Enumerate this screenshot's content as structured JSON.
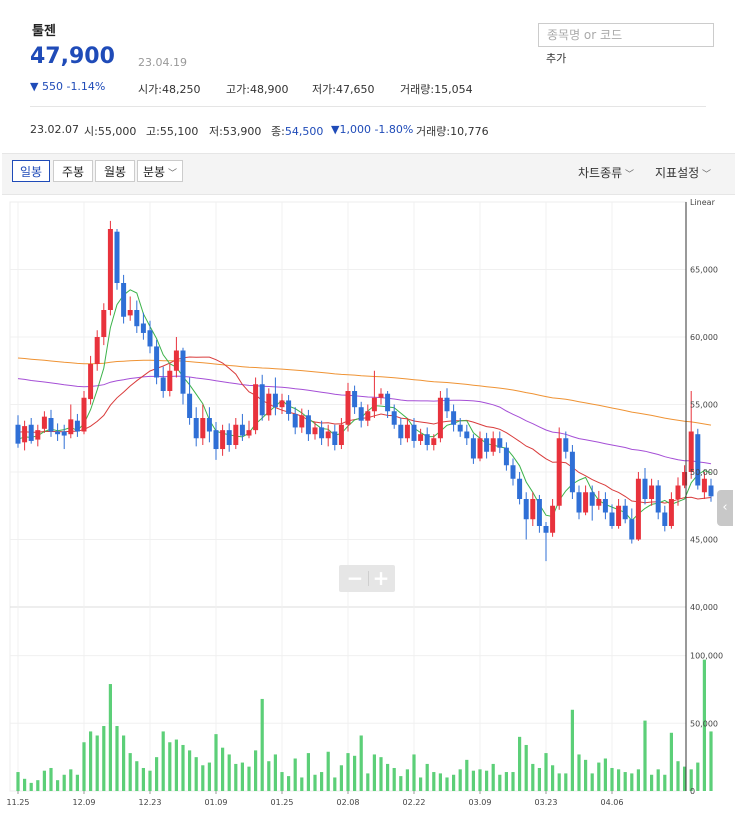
{
  "stock": {
    "name": "툴젠",
    "price": "47,900",
    "date": "23.04.19",
    "change_arrow": "▼",
    "change": "550",
    "change_pct": "-1.14%",
    "stats": [
      {
        "label": "시가",
        "value": "48,250"
      },
      {
        "label": "고가",
        "value": "48,900"
      },
      {
        "label": "저가",
        "value": "47,650"
      },
      {
        "label": "거래량",
        "value": "15,054"
      }
    ]
  },
  "search": {
    "placeholder": "종목명 or 코드",
    "add_label": "추가"
  },
  "prev_day": {
    "date": "23.02.07",
    "open_label": "시",
    "open": "55,000",
    "high_label": "고",
    "high": "55,100",
    "low_label": "저",
    "low": "53,900",
    "close_label": "종",
    "close": "54,500",
    "change": "▼1,000",
    "change_pct": "-1.80%",
    "volume_label": "거래량",
    "volume": "10,776"
  },
  "toolbar": {
    "tabs": [
      "일봉",
      "주봉",
      "월봉",
      "분봉"
    ],
    "selected_tab": "일봉",
    "chart_type_label": "차트종류",
    "indicator_label": "지표설정"
  },
  "colors": {
    "up": "#e8323c",
    "down": "#2f6fd6",
    "ma5": "#3cb34a",
    "ma20": "#d93b3b",
    "ma60": "#a54fd6",
    "ma120": "#ef9334",
    "volume": "#5ccf78",
    "accent": "#1f4bb8"
  },
  "chart_data": {
    "type": "candlestick",
    "scale_label": "Linear",
    "price_ylim": [
      40000,
      70000
    ],
    "price_ticks": [
      "65,000",
      "60,000",
      "55,000",
      "50,000",
      "45,000",
      "40,000"
    ],
    "price_tick_values": [
      65000,
      60000,
      55000,
      50000,
      45000,
      40000
    ],
    "volume_ylim": [
      0,
      130000
    ],
    "volume_ticks": [
      "100,000",
      "50,000",
      "0"
    ],
    "volume_tick_values": [
      100000,
      50000,
      0
    ],
    "x_tick_labels": [
      "11.25",
      "12.09",
      "12.23",
      "01.09",
      "01.25",
      "02.08",
      "02.22",
      "03.09",
      "03.23",
      "04.06"
    ],
    "x_tick_index": [
      0,
      10,
      20,
      30,
      40,
      50,
      60,
      70,
      80,
      90
    ],
    "grid": true,
    "candles": [
      [
        53500,
        52100,
        54200,
        51800
      ],
      [
        52200,
        53400,
        53800,
        51600
      ],
      [
        53500,
        52300,
        54000,
        52100
      ],
      [
        52400,
        53100,
        53500,
        51900
      ],
      [
        53200,
        54100,
        54500,
        52900
      ],
      [
        54000,
        53000,
        54600,
        52600
      ],
      [
        53000,
        52800,
        53600,
        52300
      ],
      [
        53000,
        52700,
        53500,
        51700
      ],
      [
        52800,
        53900,
        55000,
        52500
      ],
      [
        53800,
        53000,
        54300,
        52600
      ],
      [
        53000,
        55500,
        56000,
        52800
      ],
      [
        55400,
        58000,
        58600,
        55000
      ],
      [
        58000,
        60000,
        60500,
        57500
      ],
      [
        60000,
        62000,
        62500,
        59400
      ],
      [
        62000,
        68000,
        68600,
        61600
      ],
      [
        67800,
        64000,
        68000,
        63500
      ],
      [
        64000,
        61500,
        64600,
        61000
      ],
      [
        61600,
        62000,
        63000,
        61200
      ],
      [
        62000,
        60800,
        62700,
        60300
      ],
      [
        61000,
        60300,
        61800,
        59800
      ],
      [
        60500,
        59300,
        61200,
        58800
      ],
      [
        59300,
        57000,
        59800,
        56500
      ],
      [
        57000,
        56000,
        57800,
        55500
      ],
      [
        56000,
        57500,
        58000,
        55600
      ],
      [
        57500,
        59000,
        60000,
        57000
      ],
      [
        59000,
        55800,
        59200,
        55000
      ],
      [
        55800,
        54000,
        57000,
        53500
      ],
      [
        54000,
        52500,
        54800,
        51900
      ],
      [
        52500,
        54000,
        55000,
        52000
      ],
      [
        54000,
        53000,
        54800,
        52200
      ],
      [
        53100,
        51700,
        53700,
        50900
      ],
      [
        51700,
        53100,
        53500,
        51200
      ],
      [
        53100,
        52000,
        53600,
        51500
      ],
      [
        52000,
        53500,
        54000,
        51700
      ],
      [
        53500,
        52700,
        54300,
        52300
      ],
      [
        52700,
        53100,
        53800,
        52500
      ],
      [
        53100,
        56500,
        57000,
        52800
      ],
      [
        56500,
        54200,
        57200,
        53800
      ],
      [
        54200,
        55800,
        56200,
        53800
      ],
      [
        55800,
        54800,
        57000,
        54200
      ],
      [
        54800,
        55300,
        55800,
        54300
      ],
      [
        55300,
        54300,
        55700,
        53800
      ],
      [
        54300,
        53300,
        54800,
        52800
      ],
      [
        53300,
        54200,
        54700,
        52900
      ],
      [
        54200,
        52800,
        54600,
        52300
      ],
      [
        52800,
        53300,
        53700,
        52400
      ],
      [
        53300,
        52500,
        53800,
        52000
      ],
      [
        52500,
        53000,
        53500,
        51900
      ],
      [
        53000,
        52000,
        53500,
        51600
      ],
      [
        52000,
        53500,
        54000,
        51700
      ],
      [
        53500,
        56000,
        56600,
        53000
      ],
      [
        56000,
        54800,
        56400,
        54300
      ],
      [
        54800,
        53800,
        55200,
        53300
      ],
      [
        53800,
        54500,
        55000,
        53400
      ],
      [
        54500,
        55500,
        57500,
        54000
      ],
      [
        55500,
        55800,
        56200,
        55000
      ],
      [
        55800,
        54500,
        56000,
        54000
      ],
      [
        54500,
        53500,
        55000,
        53200
      ],
      [
        53500,
        52500,
        54000,
        52000
      ],
      [
        52500,
        53500,
        54000,
        52200
      ],
      [
        53500,
        52300,
        54000,
        51800
      ],
      [
        52300,
        52800,
        53200,
        52000
      ],
      [
        52800,
        52000,
        53300,
        51600
      ],
      [
        52000,
        52500,
        52800,
        51600
      ],
      [
        52500,
        55500,
        56000,
        52200
      ],
      [
        55500,
        54500,
        56200,
        54000
      ],
      [
        54500,
        53500,
        55000,
        53000
      ],
      [
        53500,
        53000,
        54000,
        52600
      ],
      [
        53000,
        52500,
        53500,
        52000
      ],
      [
        52500,
        51000,
        52800,
        50600
      ],
      [
        51000,
        52500,
        53000,
        50800
      ],
      [
        52500,
        51500,
        52900,
        51000
      ],
      [
        51500,
        52500,
        53000,
        51200
      ],
      [
        52500,
        51800,
        53000,
        51400
      ],
      [
        51800,
        50500,
        52200,
        50100
      ],
      [
        50500,
        49500,
        51000,
        49000
      ],
      [
        49500,
        48000,
        50000,
        47600
      ],
      [
        48000,
        46500,
        48500,
        45000
      ],
      [
        46500,
        48000,
        48500,
        46000
      ],
      [
        48000,
        46000,
        48300,
        45500
      ],
      [
        46000,
        45500,
        46300,
        43400
      ],
      [
        45500,
        47500,
        48000,
        45200
      ],
      [
        47500,
        52500,
        53300,
        47200
      ],
      [
        52500,
        51500,
        53000,
        51000
      ],
      [
        51500,
        48500,
        52000,
        48000
      ],
      [
        48500,
        47000,
        49000,
        46500
      ],
      [
        47000,
        48500,
        49000,
        46800
      ],
      [
        48500,
        47500,
        49000,
        46400
      ],
      [
        47500,
        48000,
        48600,
        47200
      ],
      [
        48000,
        47000,
        48500,
        46500
      ],
      [
        47000,
        46000,
        47600,
        45800
      ],
      [
        46000,
        47500,
        48000,
        45800
      ],
      [
        47500,
        46500,
        48000,
        46200
      ],
      [
        46500,
        45000,
        47300,
        44700
      ],
      [
        45000,
        49500,
        50000,
        44900
      ],
      [
        49500,
        48000,
        50300,
        47600
      ],
      [
        48000,
        49000,
        49500,
        47500
      ],
      [
        49000,
        47000,
        49400,
        46500
      ],
      [
        47000,
        46000,
        47500,
        45600
      ],
      [
        46000,
        48000,
        48500,
        45800
      ],
      [
        48000,
        49000,
        49600,
        47500
      ],
      [
        49000,
        50000,
        50500,
        48800
      ],
      [
        50000,
        53000,
        56000,
        49500
      ],
      [
        52800,
        49000,
        53200,
        48700
      ],
      [
        48500,
        49500,
        50000,
        48000
      ],
      [
        49000,
        48200,
        49500,
        47800
      ]
    ],
    "volume_values": [
      14000,
      9000,
      6000,
      8000,
      15000,
      17000,
      8000,
      12000,
      16000,
      12000,
      36000,
      44000,
      41000,
      48000,
      79000,
      48000,
      41000,
      28000,
      22000,
      17000,
      15000,
      25000,
      44000,
      36000,
      38000,
      34000,
      30000,
      25000,
      19000,
      21000,
      42000,
      32000,
      27000,
      20000,
      21000,
      18000,
      30000,
      68000,
      22000,
      27000,
      14000,
      11000,
      24000,
      10000,
      28000,
      12000,
      14000,
      29000,
      10000,
      19000,
      28000,
      26000,
      41000,
      13000,
      27000,
      25000,
      20000,
      17000,
      11000,
      16000,
      27000,
      10000,
      20000,
      14000,
      13000,
      10000,
      12000,
      16000,
      23000,
      15000,
      16000,
      15000,
      20000,
      12000,
      14000,
      14000,
      40000,
      34000,
      20000,
      17000,
      28000,
      19000,
      13000,
      13000,
      60000,
      27000,
      23000,
      13000,
      21000,
      24000,
      17000,
      16000,
      14000,
      13000,
      16000,
      52000,
      12000,
      16000,
      12000,
      43000,
      22000,
      18000,
      16000,
      21000,
      97000,
      44000,
      16000
    ]
  }
}
